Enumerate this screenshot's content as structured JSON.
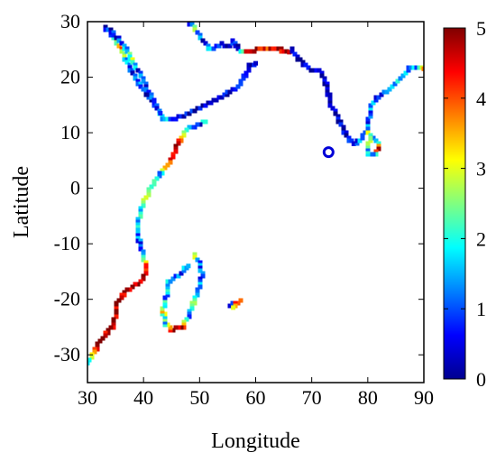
{
  "chart_data": {
    "type": "heatmap",
    "xlabel": "Longitude",
    "ylabel": "Latitude",
    "xlim": [
      30,
      90
    ],
    "ylim": [
      -35,
      30
    ],
    "xticks": [
      30,
      40,
      50,
      60,
      70,
      80,
      90
    ],
    "yticks": [
      30,
      20,
      10,
      0,
      -10,
      -20,
      -30
    ],
    "colorbar": {
      "range": [
        0,
        5
      ],
      "ticks": [
        0,
        1,
        2,
        3,
        4,
        5
      ],
      "colormap": "jet",
      "colors": [
        "#00008f",
        "#0000ff",
        "#0080ff",
        "#00ffff",
        "#80ff80",
        "#ffff00",
        "#ff8000",
        "#ff0000",
        "#800000"
      ]
    },
    "series": [
      {
        "segment": "red-sea-gulf-of-aden",
        "points": [
          [
            33,
            29,
            0.4
          ],
          [
            34,
            28,
            0.8
          ],
          [
            35,
            26.5,
            2.2
          ],
          [
            36,
            25,
            3.6
          ],
          [
            37,
            23,
            1.5
          ],
          [
            38,
            21,
            0.7
          ],
          [
            39,
            19,
            1.2
          ],
          [
            40.5,
            17,
            0.5
          ],
          [
            42,
            15,
            0.6
          ],
          [
            43.5,
            12.5,
            1.8
          ],
          [
            46,
            12.5,
            0.6
          ],
          [
            49,
            14,
            0.4
          ],
          [
            52,
            15.5,
            0.3
          ],
          [
            54,
            16.5,
            0.4
          ],
          [
            57,
            18.5,
            0.4
          ],
          [
            59,
            22,
            0.3
          ],
          [
            60,
            22.5,
            0.3
          ]
        ]
      },
      {
        "segment": "red-sea-west-coast",
        "points": [
          [
            34,
            28.5,
            0.5
          ],
          [
            35.5,
            27,
            0.7
          ],
          [
            37,
            25,
            1.5
          ],
          [
            38,
            23,
            2.5
          ],
          [
            39,
            21,
            0.8
          ],
          [
            40,
            19.5,
            1.1
          ],
          [
            41,
            17,
            0.6
          ],
          [
            42,
            15.5,
            1.2
          ],
          [
            43,
            13.5,
            0.8
          ]
        ]
      },
      {
        "segment": "persian-gulf-and-iran-coast",
        "points": [
          [
            48,
            30,
            0.4
          ],
          [
            49,
            29,
            2.5
          ],
          [
            50,
            27.5,
            1.2
          ],
          [
            51,
            26,
            0.5
          ],
          [
            52,
            25,
            1.5
          ],
          [
            54,
            26,
            0.6
          ],
          [
            55,
            25.5,
            0.4
          ],
          [
            56,
            26.5,
            0.5
          ],
          [
            57,
            25,
            0.3
          ],
          [
            58.5,
            24.5,
            4.5
          ],
          [
            60,
            25,
            4.8
          ],
          [
            62,
            25,
            3.9
          ],
          [
            64,
            25,
            4.8
          ],
          [
            66,
            24.5,
            4.6
          ]
        ]
      },
      {
        "segment": "india-west-coast",
        "points": [
          [
            66.5,
            25,
            0.1
          ],
          [
            67,
            24,
            0.2
          ],
          [
            68,
            23,
            0.1
          ],
          [
            69,
            22,
            0.2
          ],
          [
            70,
            21,
            0.2
          ],
          [
            71.5,
            21,
            0.1
          ],
          [
            72.5,
            19,
            0.2
          ],
          [
            73,
            17,
            0.3
          ],
          [
            73.5,
            15,
            0.2
          ],
          [
            74.5,
            13,
            0.2
          ],
          [
            75.5,
            11,
            0.3
          ],
          [
            76.5,
            9,
            0.4
          ],
          [
            77.5,
            8,
            0.5
          ]
        ]
      },
      {
        "segment": "india-east-coast",
        "points": [
          [
            77.5,
            8,
            0.5
          ],
          [
            79,
            9,
            1.4
          ],
          [
            80,
            11,
            1.2
          ],
          [
            80.3,
            13,
            0.8
          ],
          [
            80.5,
            15,
            1.5
          ],
          [
            82,
            16.5,
            0.8
          ],
          [
            84,
            18,
            1.2
          ],
          [
            86,
            20,
            1.8
          ],
          [
            87.5,
            21.5,
            1.3
          ],
          [
            89,
            21.5,
            1.5
          ],
          [
            90,
            21.5,
            3.8
          ]
        ]
      },
      {
        "segment": "sri-lanka",
        "points": [
          [
            80,
            10,
            2.8
          ],
          [
            81,
            9,
            1.2
          ],
          [
            81.8,
            8,
            1.5
          ],
          [
            82,
            7,
            4.6
          ],
          [
            81,
            6,
            1.5
          ],
          [
            80.2,
            6,
            1.2
          ],
          [
            79.8,
            7.5,
            1.8
          ],
          [
            80.5,
            9,
            2.5
          ]
        ]
      },
      {
        "segment": "maldives-ring",
        "points": [
          [
            73,
            6.5,
            0.4
          ]
        ]
      },
      {
        "segment": "east-africa-coast",
        "points": [
          [
            51,
            12,
            2.5
          ],
          [
            50,
            11.5,
            0.6
          ],
          [
            47.5,
            10.5,
            1.5
          ],
          [
            46,
            7.5,
            4.8
          ],
          [
            45,
            5,
            4.8
          ],
          [
            43,
            2.5,
            1.6
          ],
          [
            41.5,
            0.5,
            1.8
          ],
          [
            40.5,
            -1.5,
            2.5
          ],
          [
            39.5,
            -4,
            1.8
          ],
          [
            39,
            -6.5,
            1.7
          ],
          [
            39,
            -8.5,
            1.2
          ],
          [
            39.5,
            -10.5,
            0.8
          ],
          [
            40,
            -12,
            1.5
          ],
          [
            40.5,
            -14.5,
            4.6
          ],
          [
            40,
            -16.5,
            4.8
          ],
          [
            38.5,
            -17.5,
            4.9
          ],
          [
            36.5,
            -19,
            4.8
          ],
          [
            35,
            -21,
            4.9
          ],
          [
            35,
            -23,
            4.8
          ],
          [
            34.5,
            -25,
            4.9
          ],
          [
            33,
            -26.5,
            4.8
          ],
          [
            32,
            -28,
            4.8
          ],
          [
            31,
            -30,
            2.6
          ],
          [
            30,
            -31.5,
            1.8
          ]
        ]
      },
      {
        "segment": "madagascar",
        "points": [
          [
            49,
            -12,
            3.2
          ],
          [
            50,
            -13.5,
            1.2
          ],
          [
            50.5,
            -15.5,
            0.8
          ],
          [
            50,
            -18,
            1.5
          ],
          [
            49,
            -20.5,
            2.2
          ],
          [
            48,
            -23,
            1.3
          ],
          [
            47,
            -25,
            4.7
          ],
          [
            45,
            -25.5,
            4.8
          ],
          [
            44,
            -24.5,
            1.5
          ],
          [
            43.5,
            -22,
            3.0
          ],
          [
            44,
            -19.5,
            1.2
          ],
          [
            44.5,
            -17,
            2.0
          ],
          [
            46.5,
            -15.5,
            0.8
          ],
          [
            48,
            -14,
            1.5
          ]
        ]
      },
      {
        "segment": "mascarene-islands",
        "points": [
          [
            55.5,
            -21,
            0.5
          ],
          [
            57,
            -20.5,
            1.6
          ],
          [
            57.5,
            -20,
            4.8
          ],
          [
            56,
            -21.5,
            3.0
          ]
        ]
      }
    ]
  }
}
